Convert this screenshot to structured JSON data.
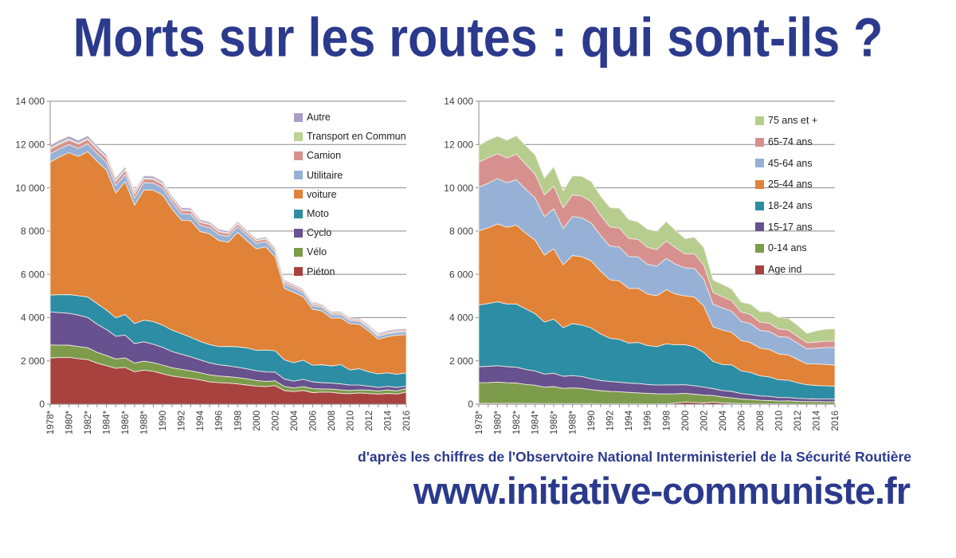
{
  "page": {
    "title": "Morts sur les routes : qui sont-ils ?",
    "credit": "d'après les chiffres de l'Observtoire National Interministeriel de la Sécurité Routière",
    "website": "www.initiative-communiste.fr",
    "colors": {
      "brand_blue": "#2b3a8c",
      "gridline": "#8a8a8a",
      "axis_text": "#3c3c3c",
      "legend_text": "#1f1f1f",
      "area_edge": "#efe9e2"
    }
  },
  "chart_data": [
    {
      "type": "area",
      "stacked": true,
      "title": "",
      "xlabel": "",
      "ylabel": "",
      "ylim": [
        0,
        14000
      ],
      "ytick_step": 2000,
      "grid": true,
      "legend_position": "inside-right",
      "legend_order": "top-of-stack-first",
      "years": [
        1978,
        1979,
        1980,
        1981,
        1982,
        1983,
        1984,
        1985,
        1986,
        1987,
        1988,
        1989,
        1990,
        1991,
        1992,
        1993,
        1994,
        1995,
        1996,
        1997,
        1998,
        1999,
        2000,
        2001,
        2002,
        2003,
        2004,
        2005,
        2006,
        2007,
        2008,
        2009,
        2010,
        2011,
        2012,
        2013,
        2014,
        2015,
        2016
      ],
      "x_tick_labels": [
        "1978*",
        "1980*",
        "1982*",
        "1984*",
        "1986*",
        "1988*",
        "1990",
        "1992",
        "1994",
        "1996",
        "1998",
        "2000",
        "2002",
        "2004",
        "2006",
        "2008",
        "2010",
        "2012",
        "2014",
        "2016"
      ],
      "y_tick_labels": [
        "0",
        "2 000",
        "4 000",
        "6 000",
        "8 000",
        "10 000",
        "12 000",
        "14 000"
      ],
      "series": [
        {
          "name": "Piéton",
          "color": "#a8423e",
          "values": [
            2137,
            2160,
            2165,
            2104,
            2060,
            1900,
            1780,
            1660,
            1700,
            1500,
            1575,
            1520,
            1407,
            1302,
            1240,
            1190,
            1120,
            1027,
            999,
            972,
            936,
            883,
            838,
            813,
            860,
            627,
            581,
            635,
            535,
            561,
            548,
            496,
            485,
            519,
            489,
            465,
            499,
            468,
            559
          ]
        },
        {
          "name": "Vélo",
          "color": "#7d9c4b",
          "values": [
            600,
            570,
            560,
            560,
            545,
            500,
            470,
            430,
            440,
            400,
            410,
            400,
            400,
            380,
            370,
            350,
            330,
            330,
            300,
            300,
            290,
            290,
            255,
            240,
            220,
            190,
            167,
            180,
            181,
            142,
            148,
            162,
            147,
            141,
            164,
            147,
            159,
            149,
            162
          ]
        },
        {
          "name": "Cyclo",
          "color": "#67518e",
          "values": [
            1530,
            1500,
            1480,
            1450,
            1400,
            1300,
            1200,
            1050,
            1050,
            900,
            900,
            850,
            819,
            750,
            700,
            650,
            600,
            550,
            520,
            500,
            480,
            460,
            450,
            436,
            400,
            345,
            317,
            336,
            317,
            292,
            276,
            280,
            248,
            220,
            179,
            159,
            165,
            155,
            115
          ]
        },
        {
          "name": "Moto",
          "color": "#2d8da4",
          "values": [
            780,
            830,
            860,
            900,
            950,
            950,
            900,
            850,
            950,
            930,
            1000,
            1050,
            1024,
            990,
            950,
            900,
            850,
            850,
            843,
            900,
            945,
            964,
            947,
            1011,
            992,
            884,
            854,
            881,
            769,
            830,
            795,
            888,
            704,
            760,
            664,
            631,
            625,
            614,
            613
          ]
        },
        {
          "name": "voiture",
          "color": "#e08237",
          "values": [
            6140,
            6368,
            6559,
            6436,
            6716,
            6576,
            6470,
            5767,
            6141,
            5465,
            6013,
            6073,
            6014,
            5595,
            5238,
            5392,
            5078,
            5120,
            4898,
            4812,
            5286,
            4957,
            4688,
            4770,
            4335,
            3305,
            3246,
            2936,
            2577,
            2485,
            2213,
            2162,
            2128,
            2048,
            1887,
            1601,
            1671,
            1805,
            1758
          ]
        },
        {
          "name": "Utilitaire",
          "color": "#97b1d6",
          "values": [
            380,
            380,
            375,
            370,
            365,
            360,
            355,
            350,
            345,
            340,
            335,
            330,
            325,
            315,
            305,
            300,
            290,
            285,
            275,
            270,
            265,
            255,
            250,
            245,
            235,
            200,
            190,
            185,
            170,
            165,
            155,
            150,
            145,
            140,
            135,
            130,
            125,
            125,
            120
          ]
        },
        {
          "name": "Camion",
          "color": "#d6918e",
          "values": [
            210,
            210,
            205,
            200,
            200,
            195,
            190,
            185,
            180,
            175,
            170,
            165,
            160,
            155,
            150,
            145,
            140,
            135,
            130,
            125,
            125,
            120,
            115,
            110,
            105,
            95,
            90,
            85,
            80,
            75,
            70,
            65,
            65,
            60,
            60,
            55,
            55,
            55,
            55
          ]
        },
        {
          "name": "Transport en Commun",
          "color": "#bdd193",
          "values": [
            60,
            60,
            60,
            55,
            55,
            55,
            50,
            50,
            50,
            45,
            45,
            45,
            45,
            40,
            40,
            40,
            40,
            35,
            35,
            35,
            35,
            30,
            30,
            30,
            30,
            25,
            25,
            25,
            25,
            20,
            20,
            20,
            20,
            20,
            20,
            20,
            20,
            20,
            20
          ]
        },
        {
          "name": "Autre",
          "color": "#a89cc8",
          "values": [
            120,
            120,
            120,
            115,
            115,
            110,
            110,
            105,
            105,
            100,
            100,
            95,
            95,
            90,
            90,
            85,
            85,
            80,
            80,
            75,
            75,
            70,
            70,
            65,
            65,
            60,
            60,
            55,
            55,
            50,
            50,
            50,
            50,
            55,
            55,
            60,
            65,
            70,
            75
          ]
        }
      ]
    },
    {
      "type": "area",
      "stacked": true,
      "title": "",
      "xlabel": "",
      "ylabel": "",
      "ylim": [
        0,
        14000
      ],
      "ytick_step": 2000,
      "grid": true,
      "legend_position": "inside-right",
      "legend_order": "top-of-stack-first",
      "years": [
        1978,
        1979,
        1980,
        1981,
        1982,
        1983,
        1984,
        1985,
        1986,
        1987,
        1988,
        1989,
        1990,
        1991,
        1992,
        1993,
        1994,
        1995,
        1996,
        1997,
        1998,
        1999,
        2000,
        2001,
        2002,
        2003,
        2004,
        2005,
        2006,
        2007,
        2008,
        2009,
        2010,
        2011,
        2012,
        2013,
        2014,
        2015,
        2016
      ],
      "x_tick_labels": [
        "1978*",
        "1980*",
        "1982*",
        "1984*",
        "1986*",
        "1988*",
        "1990",
        "1992",
        "1994",
        "1996",
        "1998",
        "2000",
        "2002",
        "2004",
        "2006",
        "2008",
        "2010",
        "2012",
        "2014",
        "2016"
      ],
      "y_tick_labels": [
        "0",
        "2 000",
        "4 000",
        "6 000",
        "8 000",
        "10 000",
        "12 000",
        "14 000"
      ],
      "series": [
        {
          "name": "Age ind",
          "color": "#a8423e",
          "values": [
            40,
            40,
            40,
            40,
            40,
            35,
            35,
            30,
            30,
            30,
            30,
            30,
            30,
            25,
            25,
            25,
            25,
            25,
            20,
            20,
            20,
            50,
            100,
            80,
            60,
            100,
            60,
            40,
            30,
            25,
            20,
            20,
            15,
            15,
            10,
            10,
            10,
            10,
            10
          ]
        },
        {
          "name": "0-14 ans",
          "color": "#7d9c4b",
          "values": [
            950,
            960,
            980,
            950,
            940,
            880,
            840,
            760,
            780,
            700,
            720,
            700,
            640,
            600,
            570,
            550,
            520,
            500,
            480,
            460,
            450,
            430,
            400,
            380,
            360,
            300,
            270,
            250,
            210,
            190,
            160,
            150,
            130,
            140,
            120,
            110,
            110,
            105,
            106
          ]
        },
        {
          "name": "15-17 ans",
          "color": "#67518e",
          "values": [
            740,
            750,
            760,
            740,
            730,
            690,
            660,
            600,
            620,
            560,
            570,
            550,
            500,
            470,
            450,
            440,
            430,
            430,
            410,
            400,
            420,
            410,
            400,
            390,
            370,
            320,
            300,
            300,
            250,
            230,
            200,
            190,
            160,
            150,
            140,
            130,
            125,
            120,
            120
          ]
        },
        {
          "name": "18-24 ans",
          "color": "#2d8da4",
          "values": [
            2850,
            2900,
            2950,
            2900,
            2920,
            2800,
            2650,
            2400,
            2500,
            2250,
            2400,
            2380,
            2350,
            2150,
            2000,
            1980,
            1850,
            1900,
            1800,
            1780,
            1900,
            1850,
            1850,
            1800,
            1600,
            1250,
            1200,
            1222,
            1050,
            1020,
            930,
            900,
            825,
            800,
            720,
            650,
            620,
            610,
            597
          ]
        },
        {
          "name": "25-44 ans",
          "color": "#e08237",
          "values": [
            3430,
            3500,
            3600,
            3550,
            3650,
            3500,
            3400,
            3100,
            3250,
            2900,
            3150,
            3150,
            3100,
            2900,
            2700,
            2700,
            2520,
            2500,
            2380,
            2350,
            2500,
            2350,
            2250,
            2300,
            2150,
            1600,
            1600,
            1500,
            1400,
            1380,
            1280,
            1270,
            1190,
            1180,
            1080,
            960,
            990,
            990,
            970
          ]
        },
        {
          "name": "45-64 ans",
          "color": "#97b1d6",
          "values": [
            2020,
            2060,
            2100,
            2050,
            2100,
            2030,
            1950,
            1780,
            1850,
            1680,
            1800,
            1800,
            1750,
            1650,
            1560,
            1570,
            1480,
            1450,
            1380,
            1370,
            1450,
            1380,
            1300,
            1320,
            1250,
            1050,
            1020,
            980,
            890,
            880,
            820,
            830,
            800,
            810,
            760,
            700,
            730,
            780,
            821
          ]
        },
        {
          "name": "65-74 ans",
          "color": "#d6918e",
          "values": [
            1150,
            1180,
            1150,
            1140,
            1180,
            1150,
            1100,
            1000,
            1050,
            950,
            1000,
            1010,
            990,
            930,
            880,
            880,
            830,
            810,
            780,
            760,
            800,
            760,
            650,
            680,
            640,
            540,
            520,
            480,
            430,
            420,
            380,
            380,
            350,
            340,
            310,
            280,
            290,
            290,
            283
          ]
        },
        {
          "name": "75 ans et +",
          "color": "#b6cd8d",
          "values": [
            777,
            808,
            804,
            820,
            846,
            861,
            890,
            777,
            881,
            785,
            878,
            908,
            929,
            892,
            898,
            907,
            878,
            797,
            830,
            849,
            897,
            799,
            693,
            770,
            812,
            571,
            560,
            546,
            449,
            475,
            485,
            533,
            522,
            528,
            513,
            428,
            509,
            556,
            570
          ]
        }
      ]
    }
  ]
}
